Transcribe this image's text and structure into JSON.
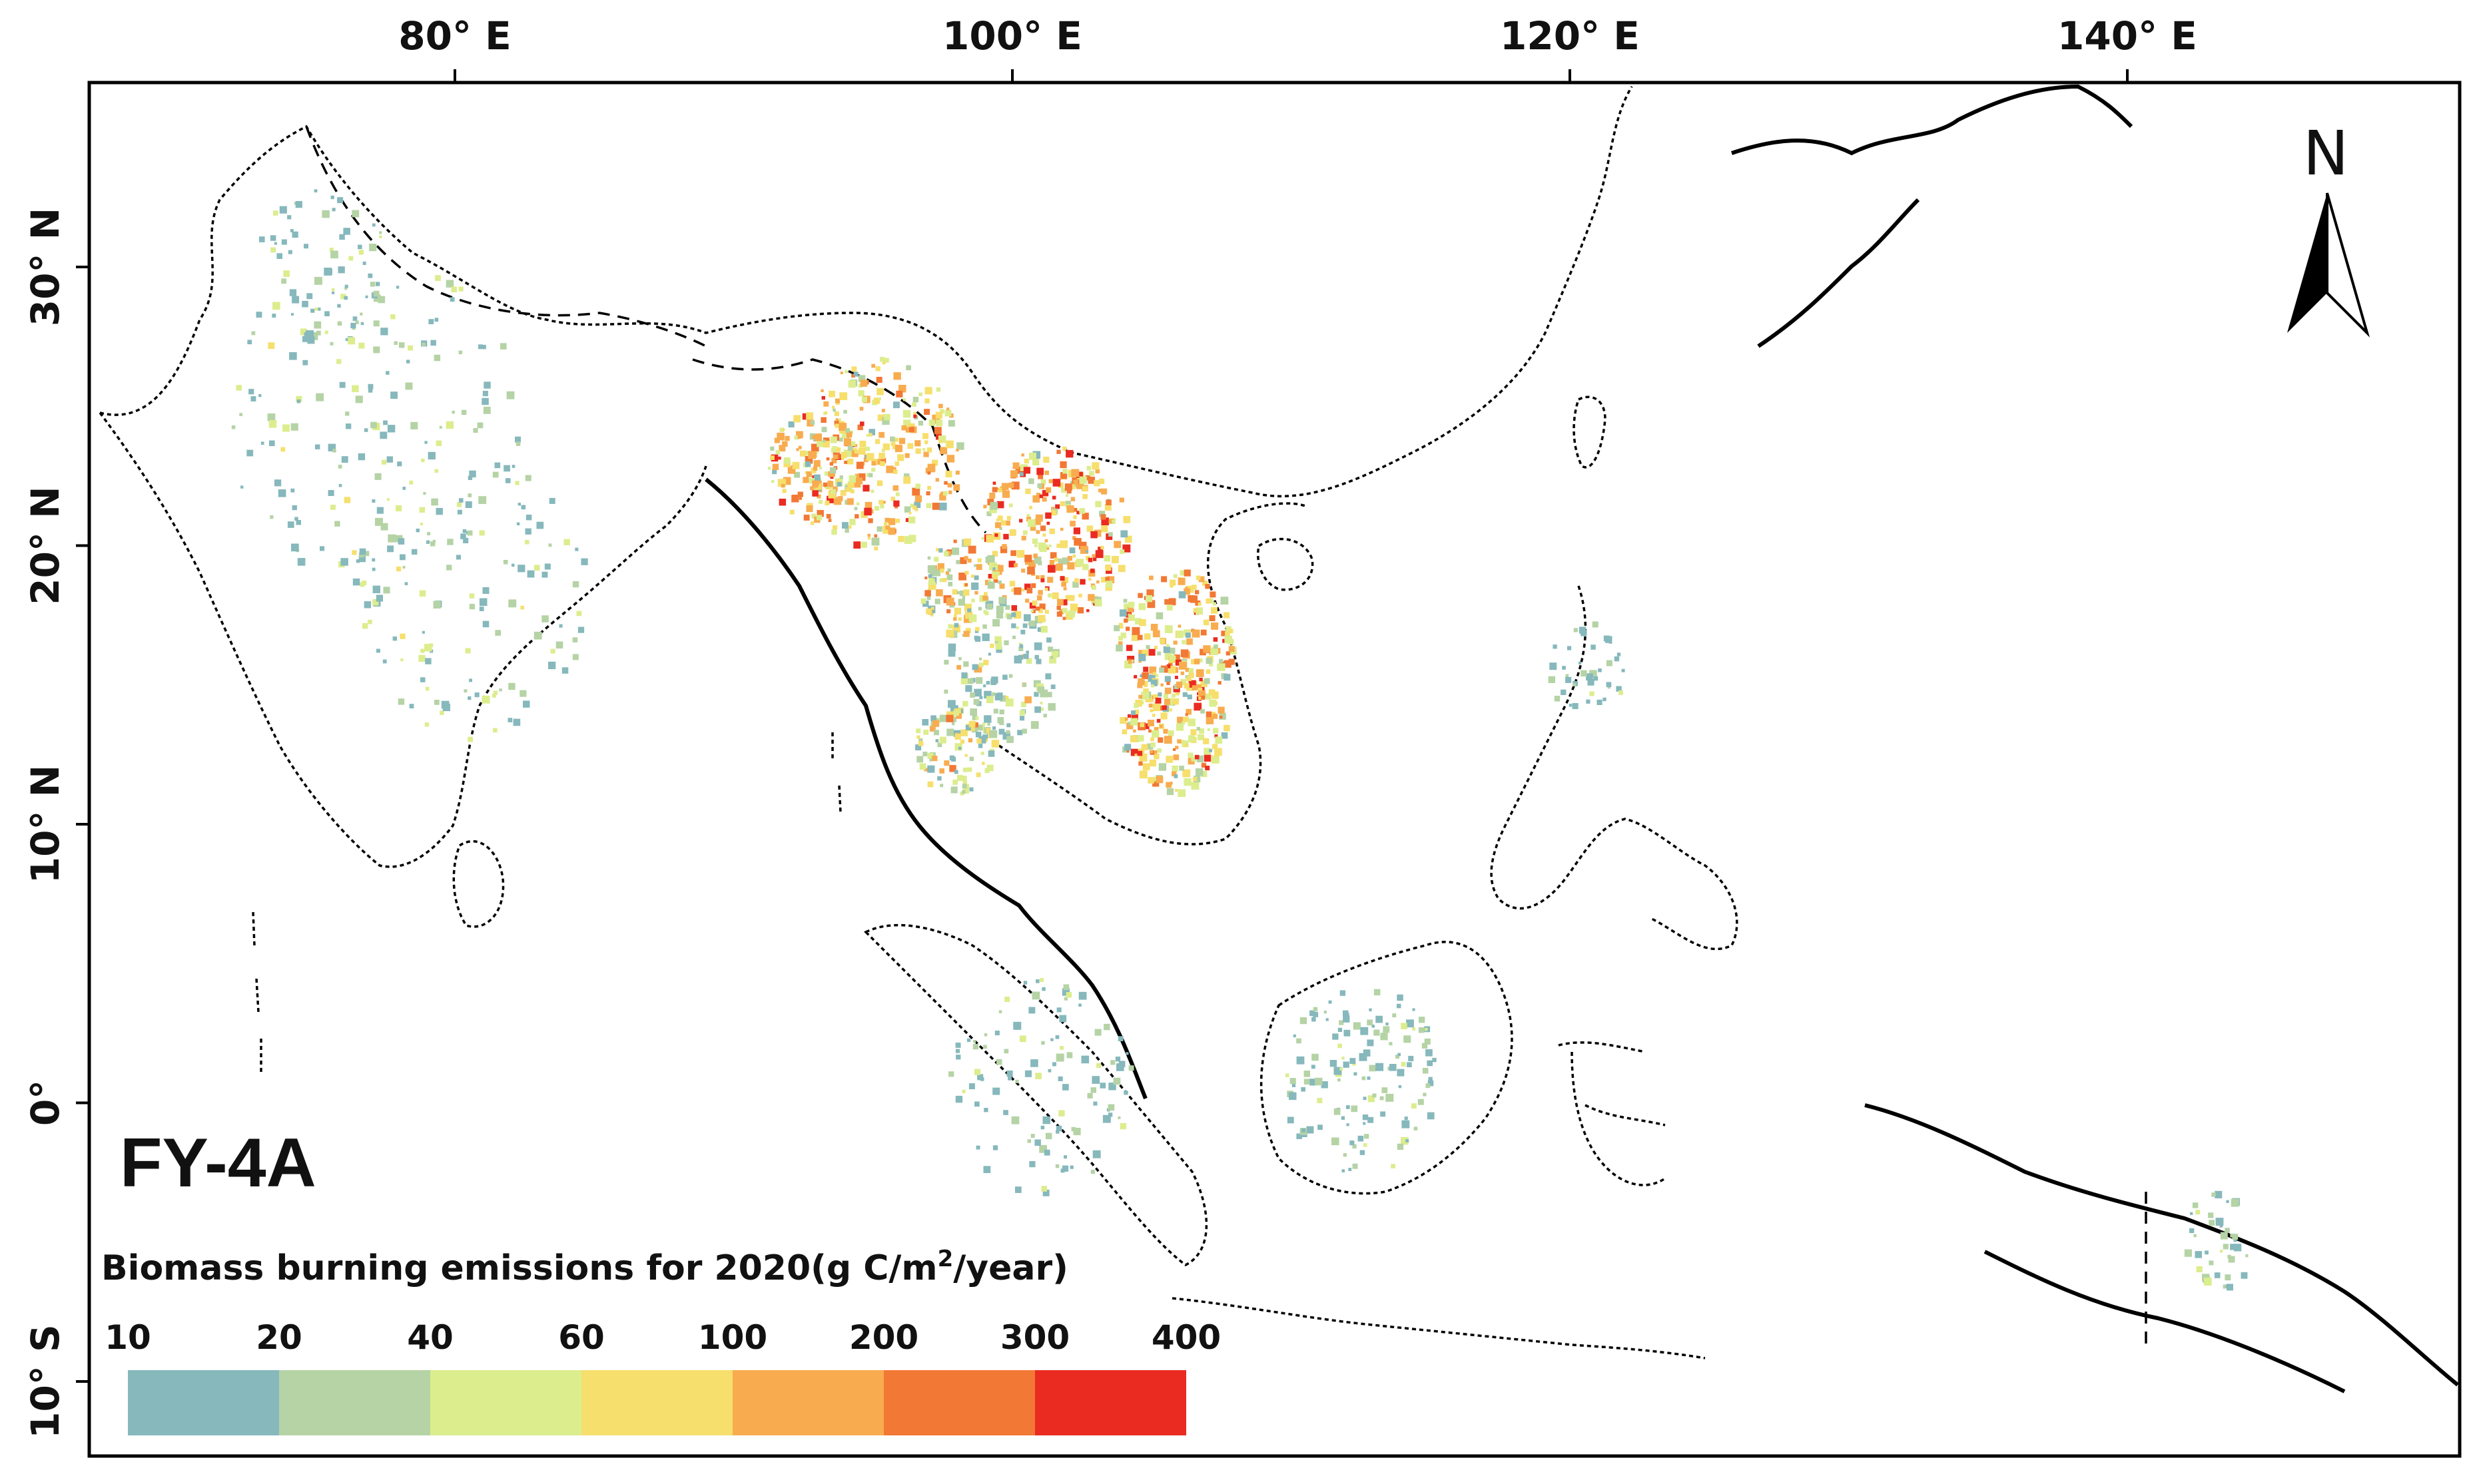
{
  "map": {
    "sensor_label": "FY-4A",
    "graticule": {
      "longitudes": [
        {
          "value": 80,
          "label": "80° E"
        },
        {
          "value": 100,
          "label": "100° E"
        },
        {
          "value": 120,
          "label": "120° E"
        },
        {
          "value": 140,
          "label": "140° E"
        }
      ],
      "latitudes": [
        {
          "value": 30,
          "label": "30° N"
        },
        {
          "value": 20,
          "label": "20° N"
        },
        {
          "value": 10,
          "label": "10° N"
        },
        {
          "value": 0,
          "label": "0°"
        },
        {
          "value": -10,
          "label": "10° S"
        }
      ]
    },
    "north_arrow": {
      "letter": "N"
    },
    "legend": {
      "title_prefix": "Biomass burning emissions for 2020(g C/m",
      "title_superscript": "2",
      "title_suffix": "/year)",
      "ticks": [
        "10",
        "20",
        "40",
        "60",
        "100",
        "200",
        "300",
        "400"
      ],
      "classes": [
        {
          "from": 10,
          "to": 20,
          "color": "#86b8bc"
        },
        {
          "from": 20,
          "to": 40,
          "color": "#b5d3a5"
        },
        {
          "from": 40,
          "to": 60,
          "color": "#dced8e"
        },
        {
          "from": 60,
          "to": 100,
          "color": "#f6df6c"
        },
        {
          "from": 100,
          "to": 200,
          "color": "#f8ac4f"
        },
        {
          "from": 200,
          "to": 300,
          "color": "#f27835"
        },
        {
          "from": 300,
          "to": 400,
          "color": "#ea2b21"
        }
      ]
    }
  }
}
